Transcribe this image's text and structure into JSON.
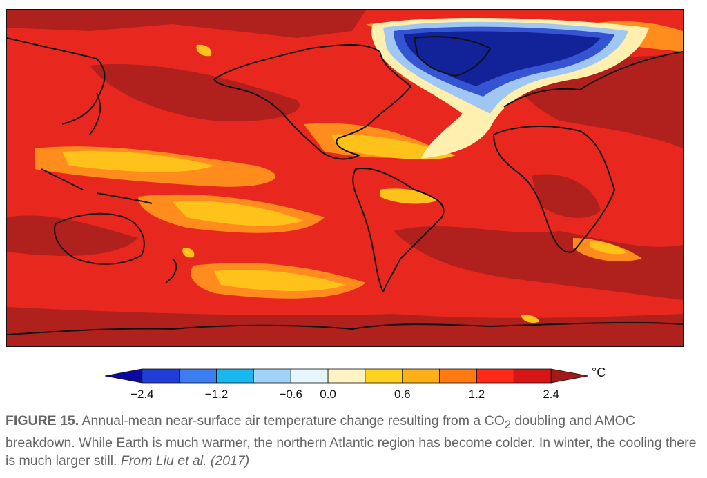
{
  "colorbar": {
    "unit": "°C",
    "ticks": [
      "−2.4",
      "−1.2",
      "−0.6",
      "0.0",
      "0.6",
      "1.2",
      "2.4"
    ],
    "colors": [
      "#0a0aa0",
      "#1f3fd8",
      "#3b7cf0",
      "#19b7ef",
      "#9fd3f7",
      "#e6f5fb",
      "#fff3c4",
      "#ffd21f",
      "#ffb016",
      "#ff7a10",
      "#ff2a1a",
      "#d81515",
      "#a11a1a"
    ]
  },
  "palette": {
    "deep_red": "#b0201c",
    "red": "#e8281e",
    "orange": "#ff8c1c",
    "yellow": "#ffc21a",
    "pale": "#fff0b0",
    "blue_dark": "#12239a",
    "blue": "#3454d1",
    "blue_light": "#9fc7f2",
    "coast": "#111111"
  },
  "caption": {
    "label": "FIGURE 15.",
    "text_part1": " Annual-mean near-surface air temperature change resulting from a CO",
    "subscript": "2",
    "text_part2": " doubling and AMOC breakdown. While Earth is much warmer, the northern Atlantic region has become colder. In winter, the cooling there is much larger still. ",
    "source": "From Liu et al. (2017)"
  }
}
